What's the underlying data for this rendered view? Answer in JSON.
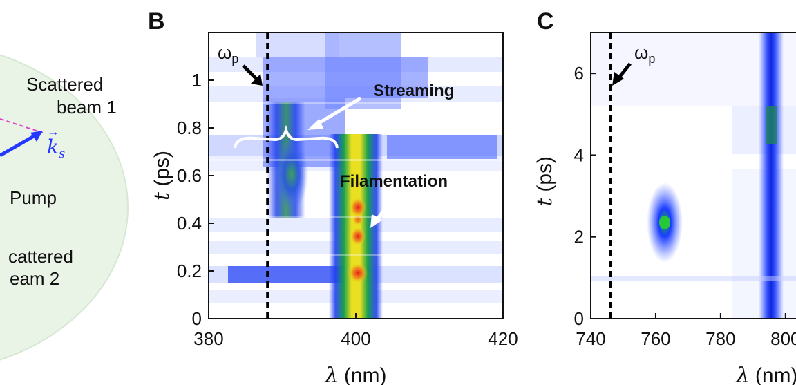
{
  "panel_a_fragment": {
    "labels": [
      "Scattered",
      "beam 1",
      "Pump",
      "cattered",
      "eam 2"
    ],
    "vector_label": "k",
    "vector_subscript": "s"
  },
  "chart_data": [
    {
      "type": "heatmap",
      "panel_label": "B",
      "xlabel_sym": "λ",
      "xlabel_unit": " (nm)",
      "ylabel_sym": "t",
      "ylabel_unit": " (ps)",
      "xlim": [
        380,
        420
      ],
      "ylim": [
        0,
        1.2
      ],
      "xticks": [
        380,
        400,
        420
      ],
      "yticks": [
        0,
        0.2,
        0.4,
        0.6,
        0.8,
        1
      ],
      "yticklabels": [
        "0",
        "0.2",
        "0.4",
        "0.6",
        "0.8",
        "1"
      ],
      "pump_line": 388,
      "pump_label": "ω",
      "pump_sub": "p",
      "annotations": [
        "Streaming",
        "Filamentation"
      ],
      "colormap": [
        "#ffffff",
        "#1a3cff",
        "#12a64a",
        "#f4e61c",
        "#e6261c"
      ]
    },
    {
      "type": "heatmap",
      "panel_label": "C",
      "xlabel_sym": "λ",
      "xlabel_unit": " (nm)",
      "ylabel_sym": "t",
      "ylabel_unit": " (ps)",
      "xlim": [
        740,
        806
      ],
      "ylim": [
        0,
        7
      ],
      "xticks": [
        740,
        760,
        780,
        800
      ],
      "yticks": [
        0,
        2,
        4,
        6
      ],
      "yticklabels": [
        "0",
        "2",
        "4",
        "6"
      ],
      "pump_line": 746,
      "pump_label": "ω",
      "pump_sub": "p",
      "annotations": []
    }
  ]
}
